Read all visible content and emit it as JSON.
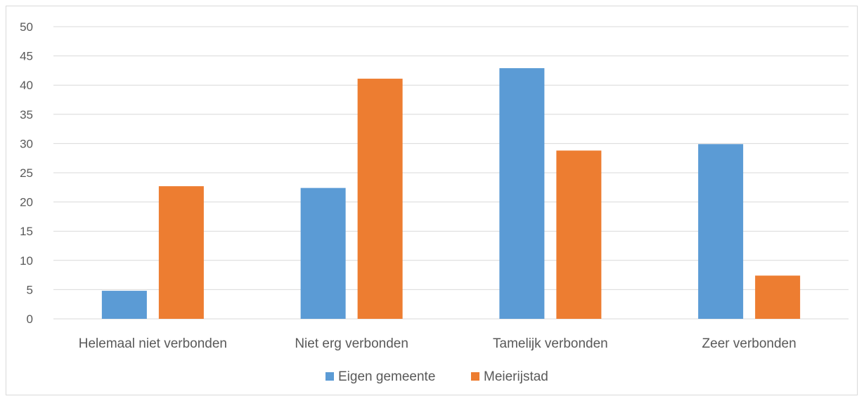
{
  "chart_data": {
    "type": "bar",
    "title": "",
    "xlabel": "",
    "ylabel": "",
    "categories": [
      "Helemaal niet verbonden",
      "Niet erg verbonden",
      "Tamelijk verbonden",
      "Zeer verbonden"
    ],
    "series": [
      {
        "name": "Eigen gemeente",
        "color": "#5b9bd5",
        "values": [
          4.8,
          22.4,
          42.9,
          29.9
        ]
      },
      {
        "name": "Meierijstad",
        "color": "#ed7d31",
        "values": [
          22.7,
          41.1,
          28.8,
          7.4
        ]
      }
    ],
    "ylim": [
      0,
      50
    ],
    "yticks": [
      "0",
      "5",
      "10",
      "15",
      "20",
      "25",
      "30",
      "35",
      "40",
      "45",
      "50"
    ],
    "grid": true,
    "legend_position": "bottom"
  }
}
